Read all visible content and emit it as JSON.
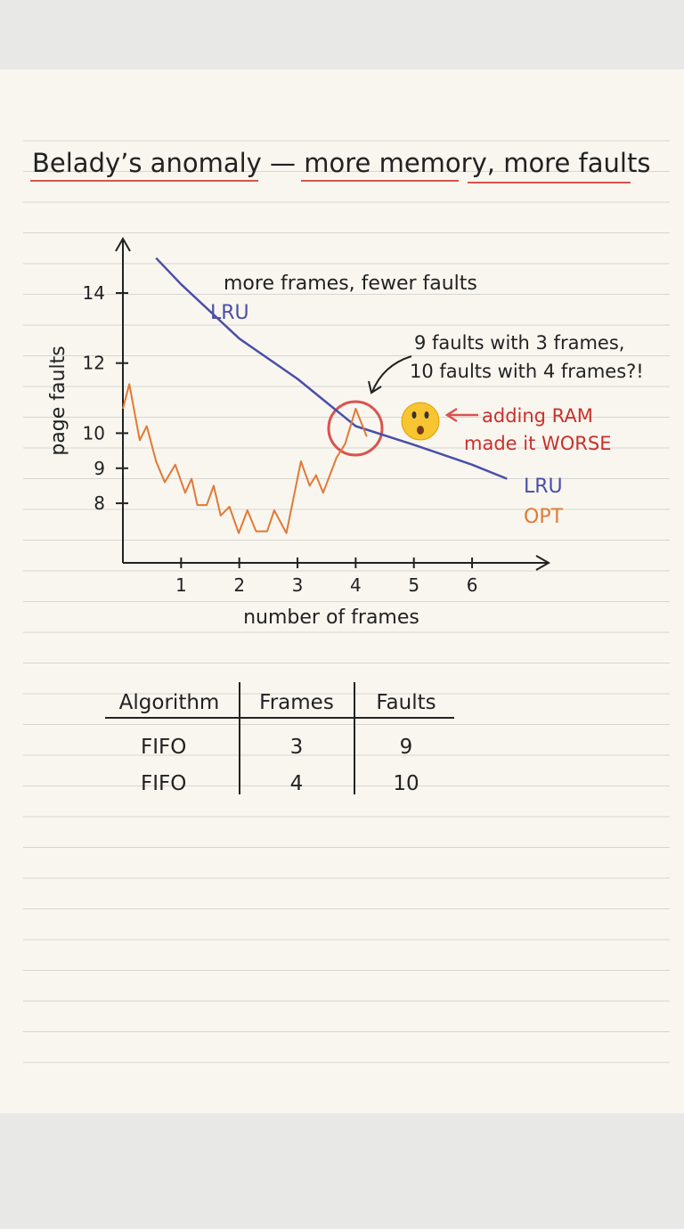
{
  "chart_data": {
    "type": "line",
    "title": "Belady’s anomaly — more memory, more faults",
    "x_label": "number of frames",
    "y_label": "page faults",
    "annotations": [
      "more frames, fewer faults",
      "9 faults with 3 frames,",
      "10 faults with 4 frames?!",
      "adding RAM",
      "made it WORSE"
    ],
    "xlim": [
      0,
      7.3
    ],
    "xticks": [
      1,
      2,
      3,
      4,
      5,
      6
    ],
    "ylim": [
      6.3,
      15.5
    ],
    "yticks": [
      8,
      9,
      10,
      12,
      14
    ],
    "series": [
      {
        "name": "LRU",
        "color": "#4a4fa8",
        "x": [
          0.57,
          1,
          2,
          3,
          4,
          5,
          6,
          6.6
        ],
        "values": [
          15.0,
          14.25,
          12.7,
          11.55,
          10.2,
          9.67,
          9.1,
          8.7
        ]
      },
      {
        "name": "OPT",
        "color": "#e07a35",
        "x": [
          0,
          0.11,
          0.29,
          0.41,
          0.57,
          0.72,
          0.9,
          1.07,
          1.18,
          1.28,
          1.44,
          1.56,
          1.68,
          1.83,
          1.99,
          2.14,
          2.29,
          2.48,
          2.6,
          2.81,
          3.06,
          3.21,
          3.32,
          3.44,
          3.67,
          3.82,
          4.0,
          4.19
        ],
        "values": [
          10.7,
          11.4,
          9.8,
          10.2,
          9.2,
          8.6,
          9.1,
          8.3,
          8.7,
          7.95,
          7.95,
          8.5,
          7.65,
          7.9,
          7.15,
          7.8,
          7.2,
          7.2,
          7.8,
          7.15,
          9.2,
          8.5,
          8.8,
          8.3,
          9.3,
          9.7,
          10.7,
          9.9
        ]
      }
    ]
  },
  "table": {
    "header": [
      "Algorithm",
      "Frames",
      "Faults"
    ],
    "rows": [
      [
        "FIFO",
        3,
        9
      ],
      [
        "FIFO",
        4,
        10
      ]
    ]
  }
}
